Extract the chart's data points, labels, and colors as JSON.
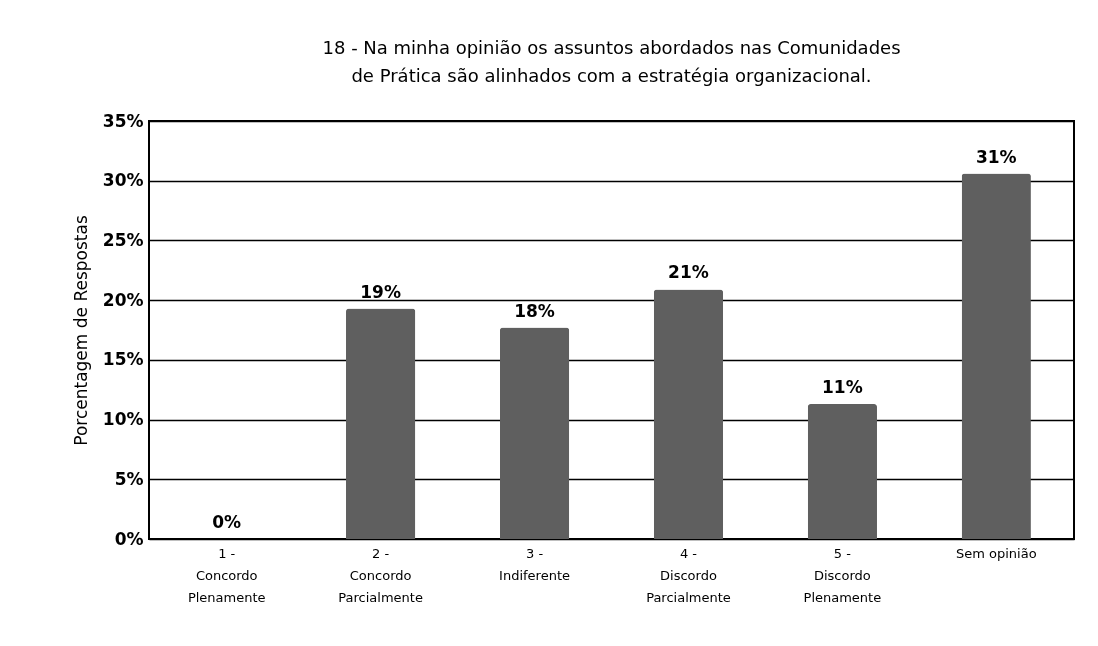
{
  "chart_data": {
    "type": "bar",
    "title": "18 - Na minha opinião os assuntos abordados nas Comunidades de Prática são alinhados com a estratégia organizacional.",
    "ylabel": "Porcentagem de Respostas",
    "categories": [
      "1 - Concordo Plenamente",
      "2 - Concordo Parcialmente",
      "3 - Indiferente",
      "4 - Discordo Parcialmente",
      "5 - Discordo Plenamente",
      "Sem opinião"
    ],
    "values": [
      0,
      19.3,
      17.7,
      20.9,
      11.3,
      30.6
    ],
    "value_labels": [
      "0%",
      "19%",
      "18%",
      "21%",
      "11%",
      "31%"
    ],
    "color": "#5f5f5f",
    "ylim": [
      0,
      35
    ],
    "yticks": [
      {
        "value": 0,
        "label": "0%"
      },
      {
        "value": 5,
        "label": "5%"
      },
      {
        "value": 10,
        "label": "10%"
      },
      {
        "value": 15,
        "label": "15%"
      },
      {
        "value": 20,
        "label": "20%"
      },
      {
        "value": 25,
        "label": "25%"
      },
      {
        "value": 30,
        "label": "30%"
      },
      {
        "value": 35,
        "label": "35%"
      }
    ],
    "grid": "y"
  }
}
